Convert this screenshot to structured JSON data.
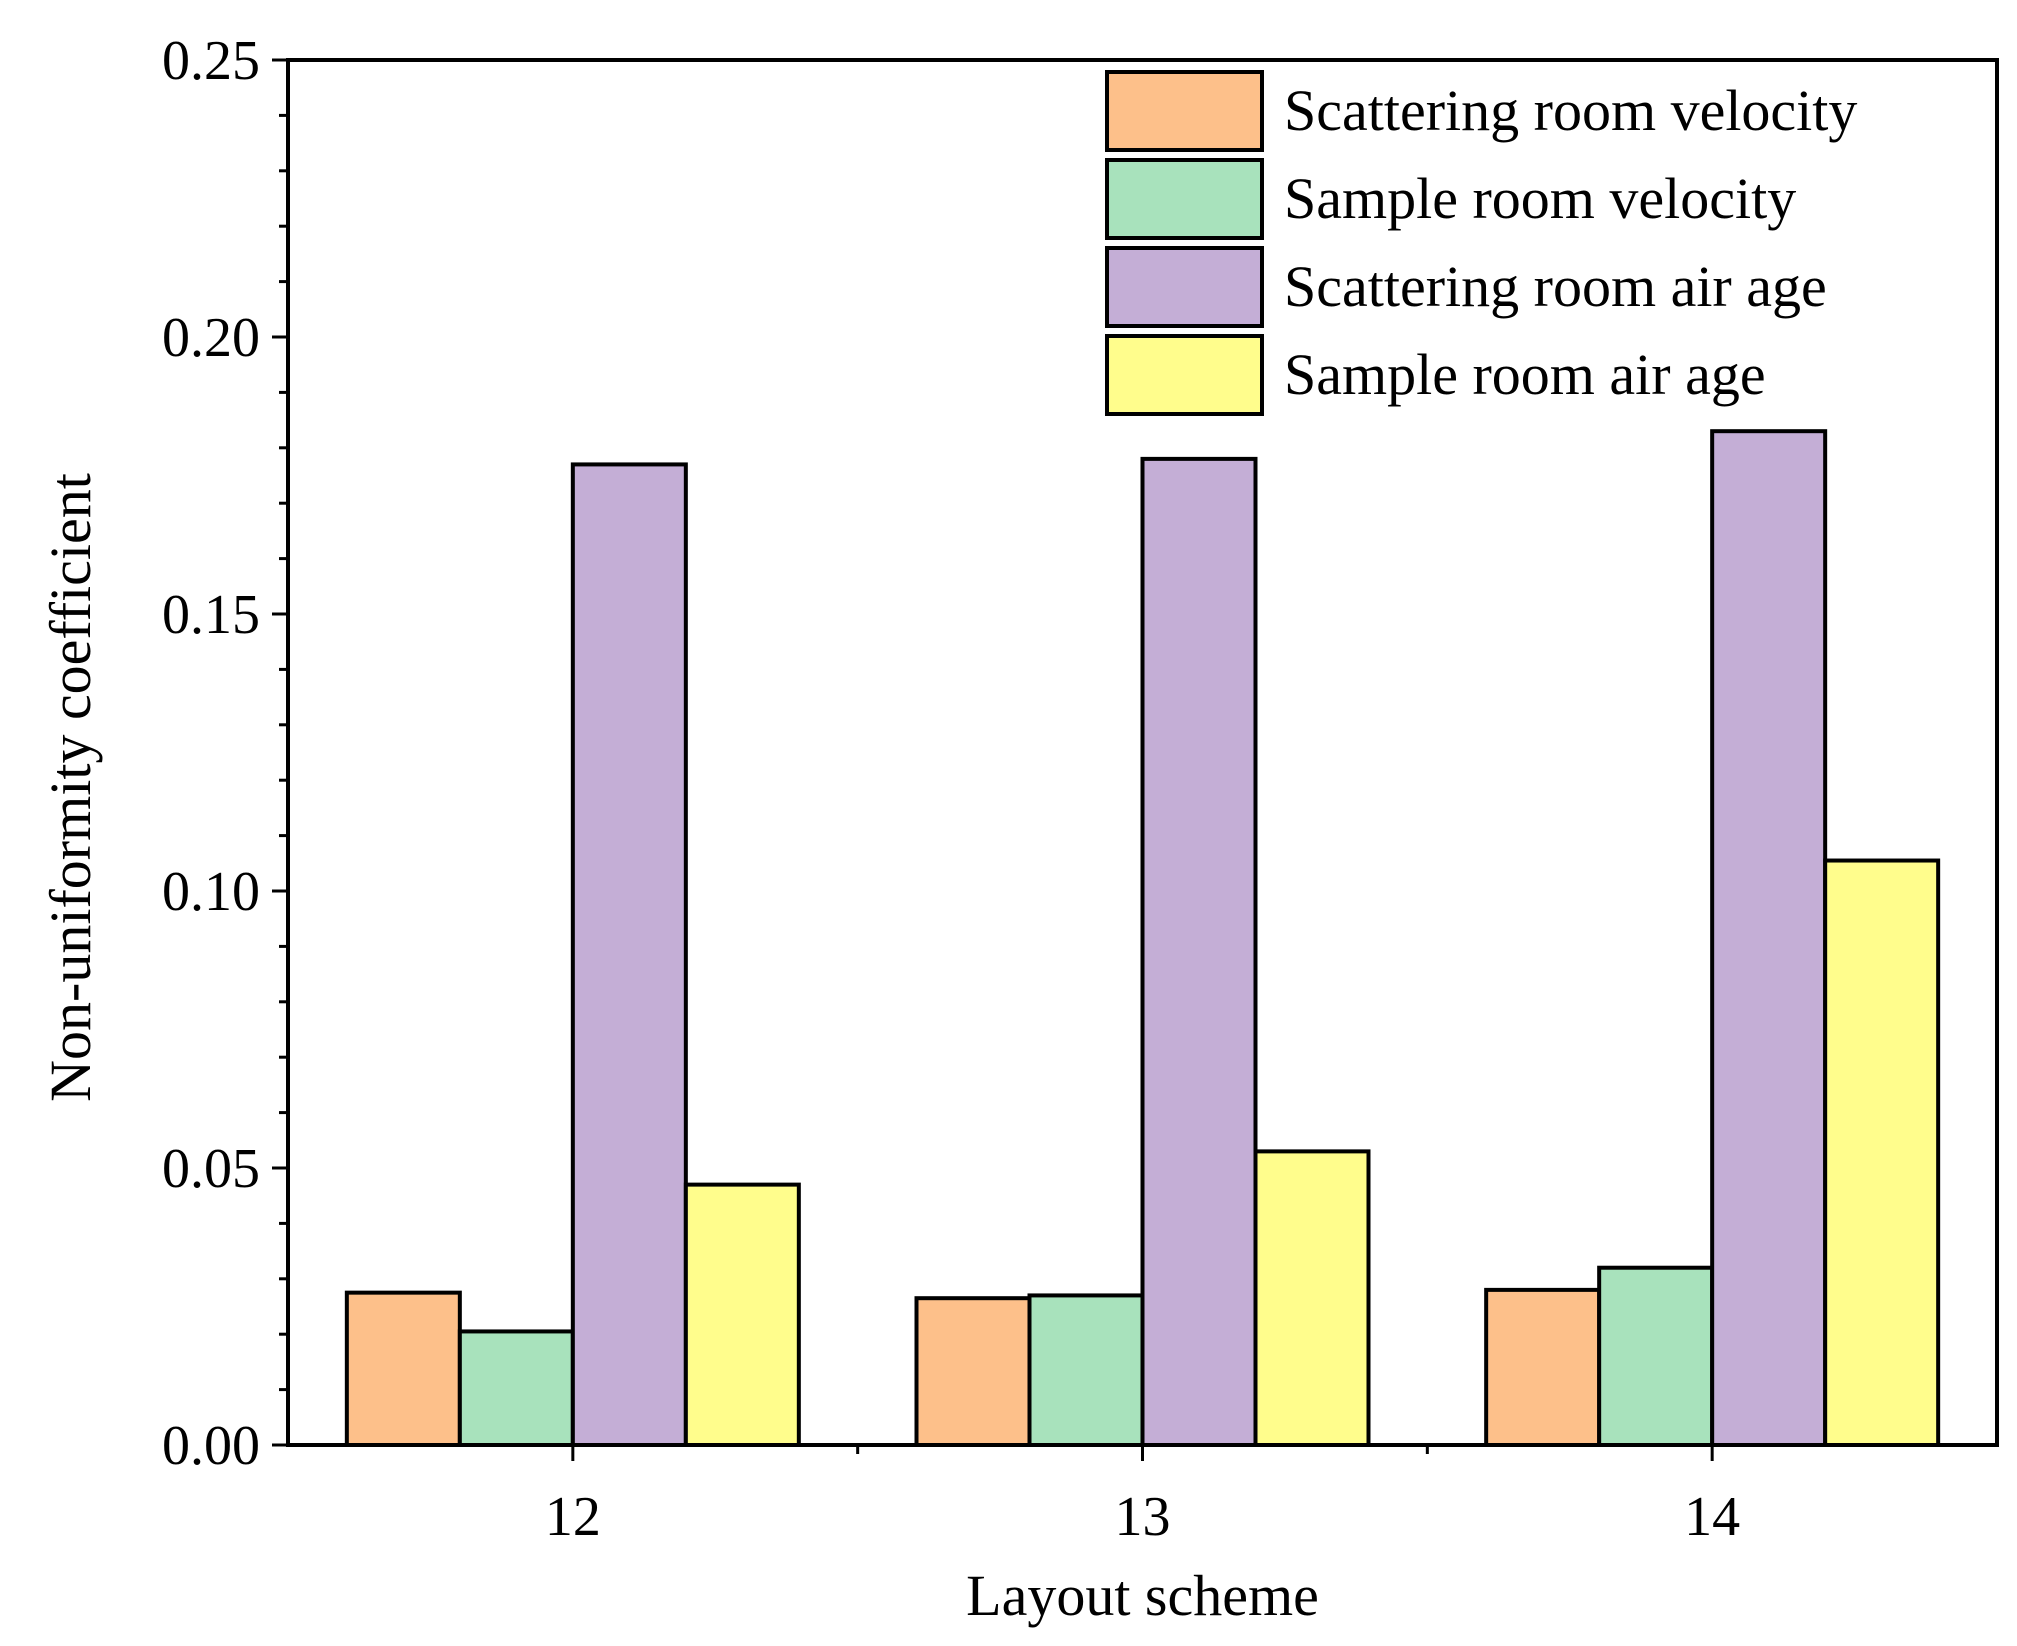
{
  "chart_data": {
    "type": "bar",
    "title": "",
    "xlabel": "Layout scheme",
    "ylabel": "Non-uniformity coefficient",
    "categories": [
      "12",
      "13",
      "14"
    ],
    "ylim": [
      0,
      0.25
    ],
    "yticks": [
      "0.00",
      "0.05",
      "0.10",
      "0.15",
      "0.20",
      "0.25"
    ],
    "series": [
      {
        "name": "Scattering room velocity",
        "color": "#FDC08A",
        "values": [
          0.0275,
          0.0265,
          0.028
        ]
      },
      {
        "name": "Sample room velocity",
        "color": "#A8E2BC",
        "values": [
          0.0205,
          0.027,
          0.032
        ]
      },
      {
        "name": "Scattering room air age",
        "color": "#C4AED6",
        "values": [
          0.177,
          0.178,
          0.183
        ]
      },
      {
        "name": "Sample room air age",
        "color": "#FFFD8C",
        "values": [
          0.047,
          0.053,
          0.1055
        ]
      }
    ],
    "legend_position": "top-right",
    "grid": false
  }
}
